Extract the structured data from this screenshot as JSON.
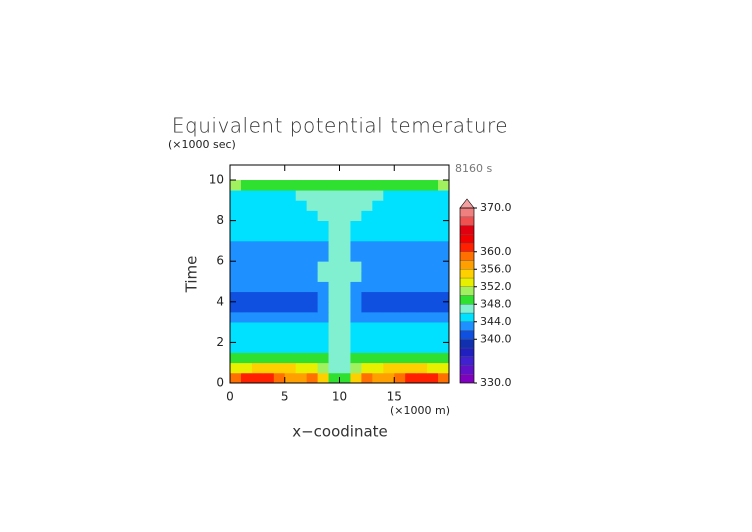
{
  "chart_data": {
    "type": "contourf",
    "title": "Equivalent potential temerature",
    "annotation": "8160 s",
    "xlabel": "x−coodinate",
    "ylabel": "Time",
    "xunit": "(×1000 m)",
    "yunit": "(×1000 sec)",
    "xlim": [
      0,
      20
    ],
    "ylim": [
      0,
      10.74
    ],
    "xticks": [
      0,
      5,
      10,
      15
    ],
    "yticks": [
      0,
      2,
      4,
      6,
      8,
      10
    ],
    "x": [
      0.5,
      1.5,
      2.5,
      3.5,
      4.5,
      5.5,
      6.5,
      7.5,
      8.5,
      9.5,
      10.5,
      11.5,
      12.5,
      13.5,
      14.5,
      15.5,
      16.5,
      17.5,
      18.5,
      19.5
    ],
    "y": [
      0.25,
      0.75,
      1.25,
      1.75,
      2.25,
      2.75,
      3.25,
      3.75,
      4.25,
      4.75,
      5.25,
      5.75,
      6.25,
      6.75,
      7.25,
      7.75,
      8.25,
      8.75,
      9.25,
      9.75
    ],
    "z": [
      [
        359,
        361,
        361,
        360,
        358,
        356,
        356,
        358,
        354,
        349,
        349,
        354,
        358,
        356,
        356,
        358,
        360,
        361,
        361,
        359
      ],
      [
        352,
        353,
        354,
        355,
        355,
        354,
        353,
        352,
        350,
        347,
        347,
        350,
        352,
        353,
        354,
        355,
        355,
        354,
        353,
        352
      ],
      [
        349,
        349,
        349,
        349,
        349,
        349,
        349,
        349,
        348,
        347,
        347,
        348,
        349,
        349,
        349,
        349,
        349,
        349,
        349,
        349
      ],
      [
        345,
        345,
        345,
        345,
        345,
        345,
        345,
        345,
        345,
        347,
        347,
        345,
        345,
        345,
        345,
        345,
        345,
        345,
        345,
        345
      ],
      [
        345,
        345,
        345,
        345,
        345,
        345,
        345,
        345,
        345,
        347,
        347,
        345,
        345,
        345,
        345,
        345,
        345,
        345,
        345,
        345
      ],
      [
        345,
        345,
        345,
        345,
        345,
        345,
        345,
        345,
        345,
        347,
        347,
        345,
        345,
        345,
        345,
        345,
        345,
        345,
        345,
        345
      ],
      [
        343,
        343,
        343,
        343,
        343,
        343,
        343,
        343,
        343,
        347,
        347,
        343,
        343,
        343,
        343,
        343,
        343,
        343,
        343,
        343
      ],
      [
        341,
        341,
        341,
        341,
        341,
        341,
        341,
        341,
        343,
        347,
        347,
        343,
        341,
        341,
        341,
        341,
        341,
        341,
        341,
        341
      ],
      [
        341,
        341,
        341,
        341,
        341,
        341,
        341,
        341,
        343,
        347,
        347,
        343,
        341,
        341,
        341,
        341,
        341,
        341,
        341,
        341
      ],
      [
        343,
        343,
        343,
        343,
        343,
        343,
        343,
        343,
        343,
        347,
        347,
        343,
        343,
        343,
        343,
        343,
        343,
        343,
        343,
        343
      ],
      [
        343,
        343,
        343,
        343,
        343,
        343,
        343,
        343,
        347,
        347,
        347,
        347,
        343,
        343,
        343,
        343,
        343,
        343,
        343,
        343
      ],
      [
        343,
        343,
        343,
        343,
        343,
        343,
        343,
        343,
        347,
        347,
        347,
        347,
        343,
        343,
        343,
        343,
        343,
        343,
        343,
        343
      ],
      [
        343,
        343,
        343,
        343,
        343,
        343,
        343,
        343,
        343,
        347,
        347,
        343,
        343,
        343,
        343,
        343,
        343,
        343,
        343,
        343
      ],
      [
        343,
        343,
        343,
        343,
        343,
        343,
        343,
        343,
        343,
        347,
        347,
        343,
        343,
        343,
        343,
        343,
        343,
        343,
        343,
        343
      ],
      [
        345,
        345,
        345,
        345,
        345,
        345,
        345,
        345,
        345,
        347,
        347,
        345,
        345,
        345,
        345,
        345,
        345,
        345,
        345,
        345
      ],
      [
        345,
        345,
        345,
        345,
        345,
        345,
        345,
        345,
        345,
        347,
        347,
        345,
        345,
        345,
        345,
        345,
        345,
        345,
        345,
        345
      ],
      [
        345,
        345,
        345,
        345,
        345,
        345,
        345,
        345,
        347,
        347,
        347,
        347,
        345,
        345,
        345,
        345,
        345,
        345,
        345,
        345
      ],
      [
        345,
        345,
        345,
        345,
        345,
        345,
        345,
        347,
        347,
        347,
        347,
        347,
        347,
        345,
        345,
        345,
        345,
        345,
        345,
        345
      ],
      [
        345,
        345,
        345,
        345,
        345,
        345,
        347,
        347,
        347,
        347,
        347,
        347,
        347,
        347,
        345,
        345,
        345,
        345,
        345,
        345
      ],
      [
        350,
        349,
        349,
        349,
        349,
        349,
        349,
        349,
        349,
        349,
        349,
        349,
        349,
        349,
        349,
        349,
        349,
        349,
        349,
        350
      ]
    ],
    "colorbar": {
      "levels": [
        330,
        332,
        334,
        336,
        338,
        340,
        342,
        344,
        346,
        348,
        350,
        352,
        354,
        356,
        358,
        360,
        362,
        364,
        366,
        368,
        370
      ],
      "colors": [
        "#8000c0",
        "#6010c8",
        "#4020d0",
        "#2020c0",
        "#1030b0",
        "#1050e0",
        "#1e90ff",
        "#00e0ff",
        "#80f0d0",
        "#30e030",
        "#a0f060",
        "#e8f000",
        "#ffd000",
        "#ffa000",
        "#ff7000",
        "#ff2000",
        "#f00000",
        "#e00010",
        "#f05050",
        "#f08080"
      ],
      "extend_color": "#f4a0a0",
      "ticks": [
        {
          "value": 330,
          "label": "330.0"
        },
        {
          "value": 340,
          "label": "340.0"
        },
        {
          "value": 344,
          "label": "344.0"
        },
        {
          "value": 348,
          "label": "348.0"
        },
        {
          "value": 352,
          "label": "352.0"
        },
        {
          "value": 356,
          "label": "356.0"
        },
        {
          "value": 360,
          "label": "360.0"
        },
        {
          "value": 370,
          "label": "370.0"
        }
      ]
    }
  }
}
